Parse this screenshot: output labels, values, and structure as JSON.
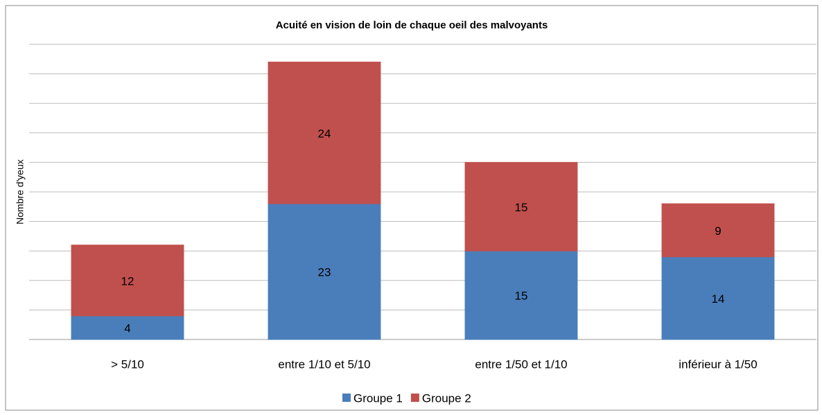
{
  "chart_data": {
    "type": "bar",
    "stacked": true,
    "title": "Acuité en vision de loin de chaque oeil des malvoyants",
    "ylabel": "Nombre d'yeux",
    "categories": [
      "> 5/10",
      "entre 1/10 et 5/10",
      "entre 1/50 et 1/10",
      "inférieur à 1/50"
    ],
    "series": [
      {
        "name": "Groupe 1",
        "color": "#4a7ebb",
        "values": [
          4,
          23,
          15,
          14
        ]
      },
      {
        "name": "Groupe 2",
        "color": "#c0504d",
        "values": [
          12,
          24,
          15,
          9
        ]
      }
    ],
    "ylim": [
      0,
      50
    ],
    "yticks": [
      0,
      5,
      10,
      15,
      20,
      25,
      30,
      35,
      40,
      45,
      50
    ],
    "grid": true,
    "legend": "bottom"
  }
}
